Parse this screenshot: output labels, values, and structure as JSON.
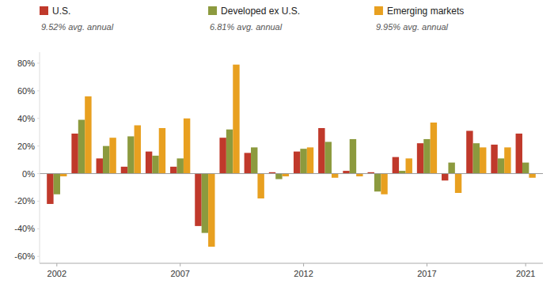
{
  "chart_data": {
    "type": "bar",
    "x": [
      2002,
      2003,
      2004,
      2005,
      2006,
      2007,
      2008,
      2009,
      2010,
      2011,
      2012,
      2013,
      2014,
      2015,
      2016,
      2017,
      2018,
      2019,
      2020,
      2021
    ],
    "series": [
      {
        "name": "U.S.",
        "color": "#c0392b",
        "values": [
          -22,
          29,
          11,
          5,
          16,
          5,
          -38,
          26,
          15,
          1,
          16,
          33,
          2,
          1,
          12,
          22,
          -5,
          31,
          21,
          29
        ]
      },
      {
        "name": "Developed ex U.S.",
        "color": "#8c9a3e",
        "values": [
          -15,
          39,
          20,
          27,
          13,
          11,
          -43,
          32,
          19,
          -4,
          18,
          23,
          25,
          -13,
          2,
          25,
          8,
          22,
          11,
          8
        ]
      },
      {
        "name": "Emerging markets",
        "color": "#e8a020",
        "values": [
          -2,
          56,
          26,
          35,
          33,
          40,
          -53,
          79,
          -18,
          -2,
          19,
          -3,
          -2,
          -15,
          11,
          37,
          -14,
          19,
          19,
          -3
        ]
      }
    ],
    "annotations": [
      "9.52% avg. annual",
      "6.81% avg. annual",
      "9.95% avg. annual"
    ],
    "xlim": [
      2001.3,
      2021.7
    ],
    "xticks": [
      2002,
      2007,
      2012,
      2017,
      2021
    ],
    "ylim": [
      -65,
      88
    ],
    "yticks": [
      {
        "value": -60,
        "label": "-60%"
      },
      {
        "value": -40,
        "label": "-40%"
      },
      {
        "value": -20,
        "label": "-20%"
      },
      {
        "value": 0,
        "label": "0%"
      },
      {
        "value": 20,
        "label": "20%"
      },
      {
        "value": 40,
        "label": "40%"
      },
      {
        "value": 60,
        "label": "60%"
      },
      {
        "value": 80,
        "label": "80%"
      }
    ],
    "grid": false,
    "legend": "top"
  }
}
